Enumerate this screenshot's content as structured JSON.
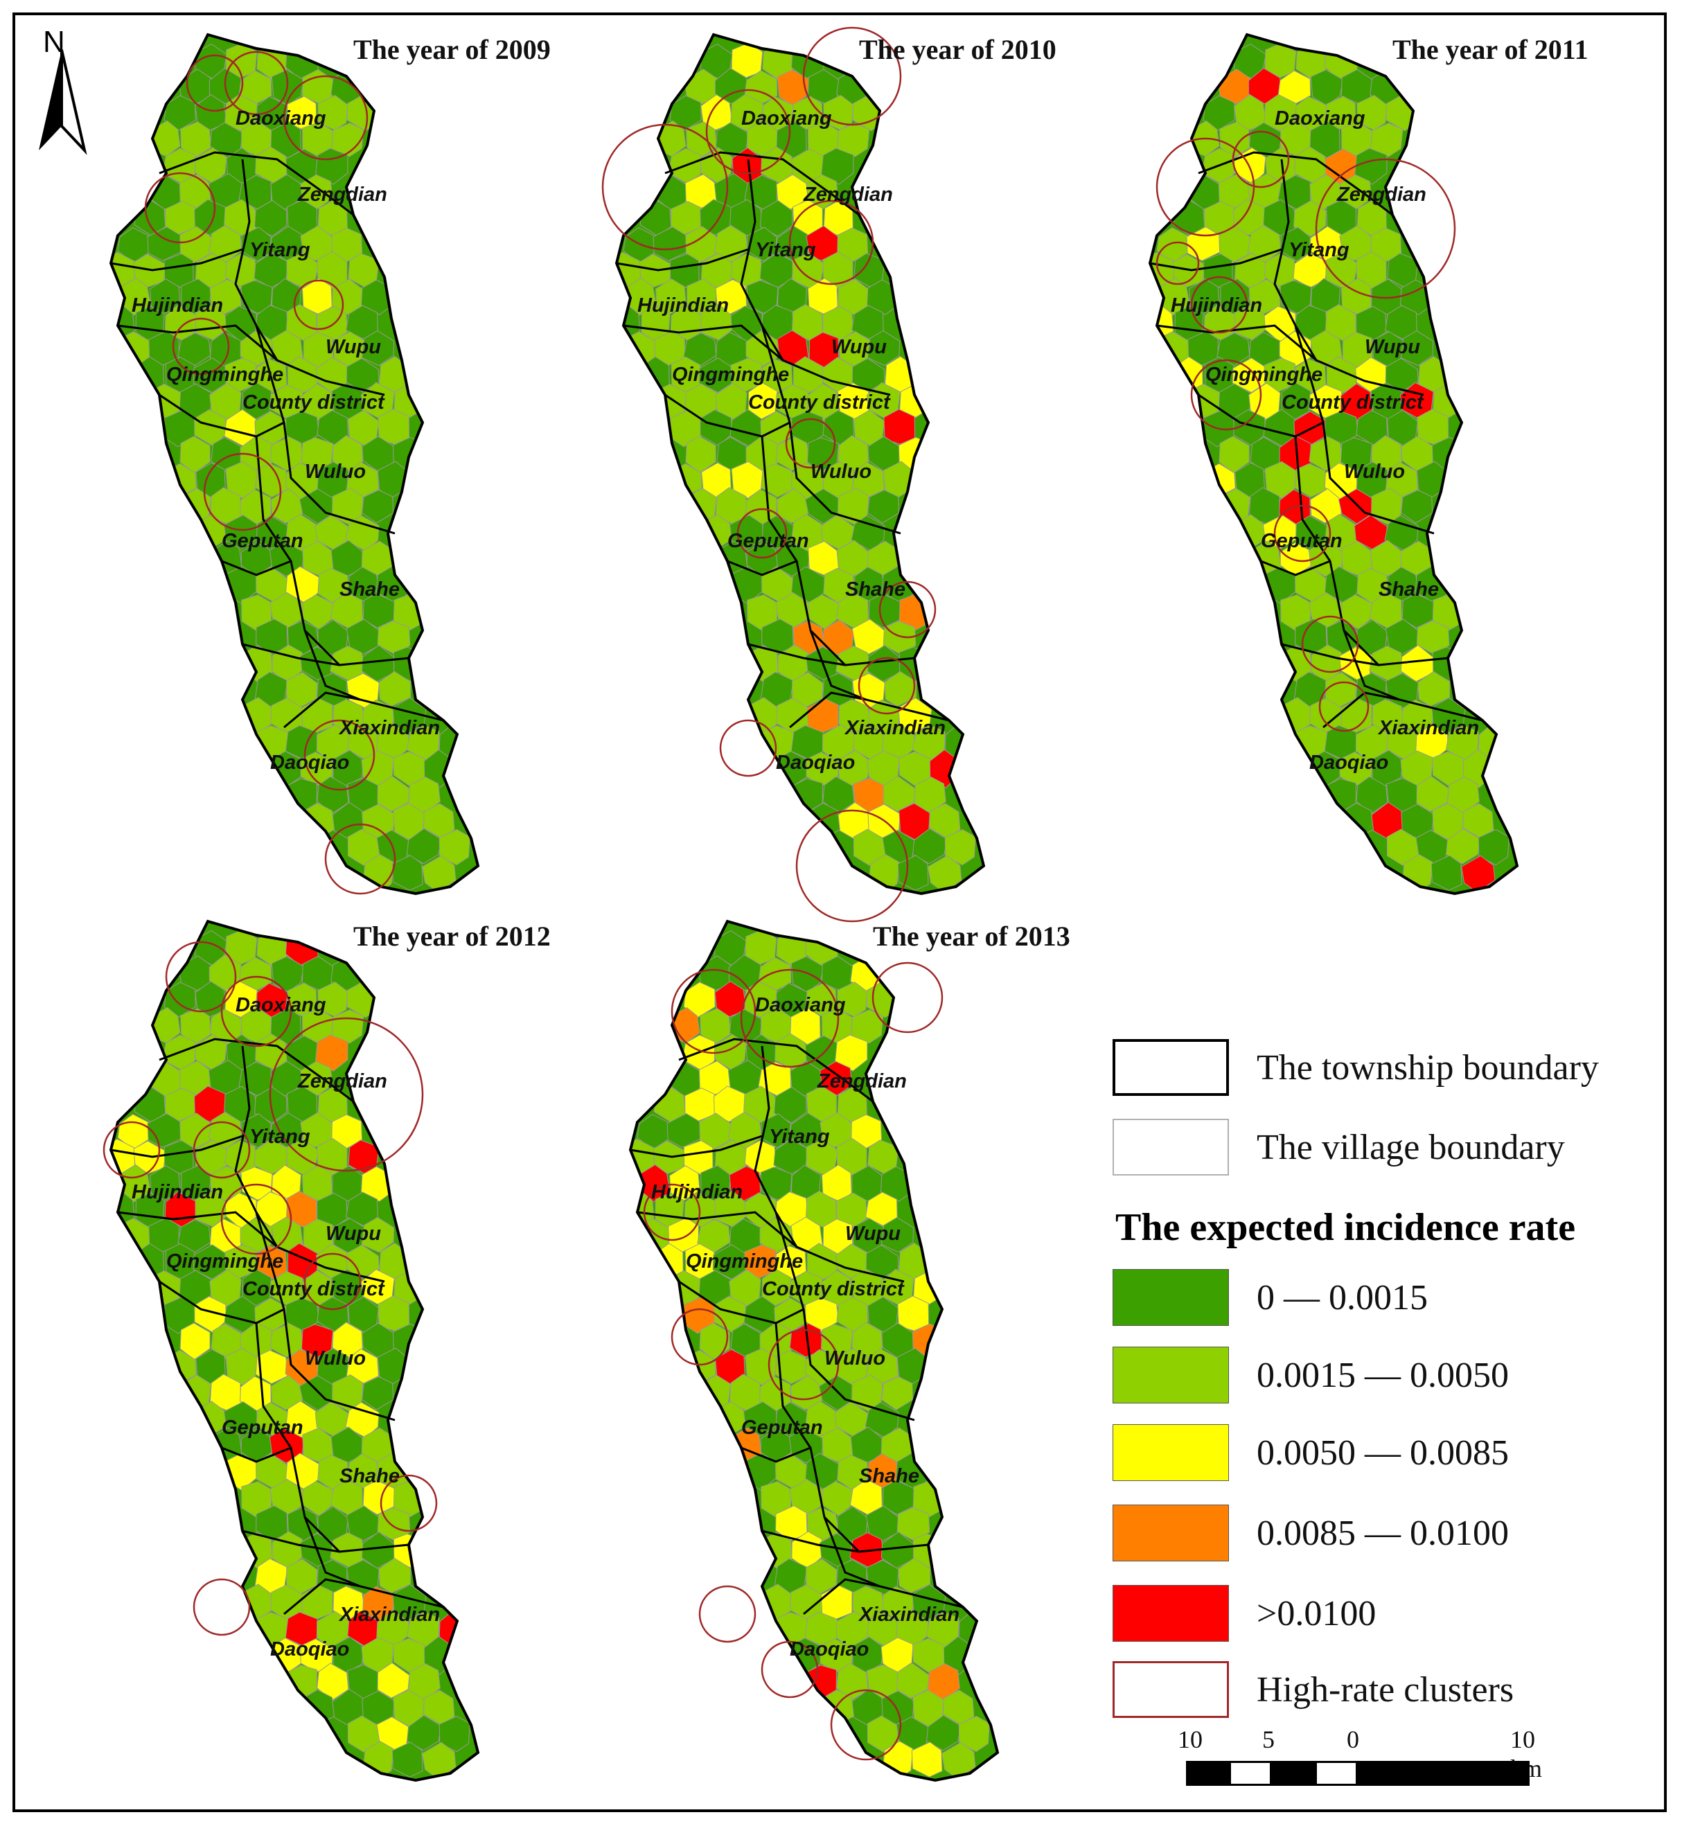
{
  "panels": [
    {
      "title": "The year of 2009",
      "shading": [
        0.12,
        0.02,
        0.0,
        0.0
      ]
    },
    {
      "title": "The year of 2010",
      "shading": [
        0.18,
        0.09,
        0.05,
        0.06
      ]
    },
    {
      "title": "The year of 2011",
      "shading": [
        0.16,
        0.14,
        0.03,
        0.04
      ]
    },
    {
      "title": "The year of 2012",
      "shading": [
        0.16,
        0.16,
        0.04,
        0.05
      ]
    },
    {
      "title": "The year of 2013",
      "shading": [
        0.2,
        0.14,
        0.02,
        0.04
      ]
    }
  ],
  "townships": [
    "Daoxiang",
    "Zengdian",
    "Yitang",
    "Hujindian",
    "Wupu",
    "Qingminghe",
    "County district",
    "Wuluo",
    "Geputan",
    "Shahe",
    "Xiaxindian",
    "Daoqiao"
  ],
  "north_arrow": {
    "label": "N"
  },
  "legend": {
    "township_boundary": "The township boundary",
    "village_boundary": "The village boundary",
    "title": "The expected incidence rate",
    "classes": [
      {
        "label": "0 — 0.0015",
        "color": "#3ca000"
      },
      {
        "label": "0.0015 — 0.0050",
        "color": "#8fd000"
      },
      {
        "label": "0.0050 — 0.0085",
        "color": "#ffff00"
      },
      {
        "label": "0.0085 — 0.0100",
        "color": "#ff8000"
      },
      {
        "label": ">0.0100",
        "color": "#ff0000"
      }
    ],
    "clusters": "High-rate clusters",
    "cluster_color": "#a02828"
  },
  "scale_bar": {
    "labels": [
      "10",
      "5",
      "0",
      "10 km"
    ]
  }
}
